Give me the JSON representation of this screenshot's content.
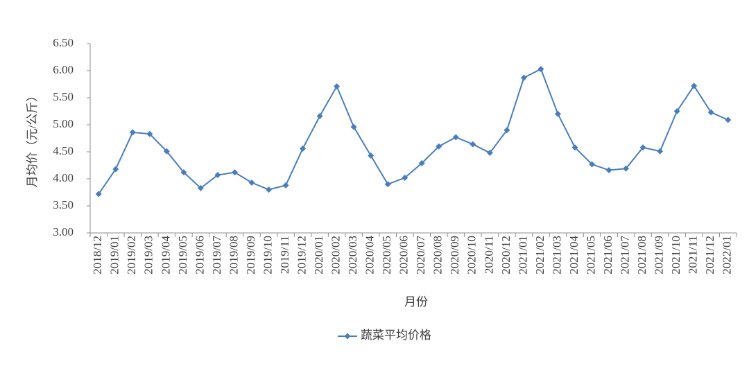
{
  "chart_data": {
    "type": "line",
    "xlabel": "月份",
    "ylabel": "月均价（元/公斤）",
    "categories": [
      "2018/12",
      "2019/01",
      "2019/02",
      "2019/03",
      "2019/04",
      "2019/05",
      "2019/06",
      "2019/07",
      "2019/08",
      "2019/09",
      "2019/10",
      "2019/11",
      "2019/12",
      "2020/01",
      "2020/02",
      "2020/03",
      "2020/04",
      "2020/05",
      "2020/06",
      "2020/07",
      "2020/08",
      "2020/09",
      "2020/10",
      "2020/11",
      "2020/12",
      "2021/01",
      "2021/02",
      "2021/03",
      "2021/04",
      "2021/05",
      "2021/06",
      "2021/07",
      "2021/08",
      "2021/09",
      "2021/10",
      "2021/11",
      "2021/12",
      "2022/01"
    ],
    "series": [
      {
        "name": "蔬菜平均价格",
        "color": "#4a7ebb",
        "values": [
          3.72,
          4.18,
          4.86,
          4.83,
          4.51,
          4.12,
          3.83,
          4.07,
          4.12,
          3.93,
          3.8,
          3.88,
          4.56,
          5.16,
          5.71,
          4.96,
          4.43,
          3.9,
          4.02,
          4.29,
          4.6,
          4.77,
          4.64,
          4.48,
          4.9,
          5.87,
          6.03,
          5.2,
          4.58,
          4.27,
          4.16,
          4.19,
          4.58,
          4.51,
          5.25,
          5.72,
          5.23,
          5.09
        ]
      }
    ],
    "ylim": [
      3,
      6.5
    ],
    "yticks": [
      {
        "value": 3,
        "label": "3.00"
      },
      {
        "value": 3.5,
        "label": "3.50"
      },
      {
        "value": 4,
        "label": "4.00"
      },
      {
        "value": 4.5,
        "label": "4.50"
      },
      {
        "value": 5,
        "label": "5.00"
      },
      {
        "value": 5.5,
        "label": "5.50"
      },
      {
        "value": 6,
        "label": "6.00"
      },
      {
        "value": 6.5,
        "label": "6.50"
      }
    ],
    "grid": false,
    "legend": "bottom"
  }
}
